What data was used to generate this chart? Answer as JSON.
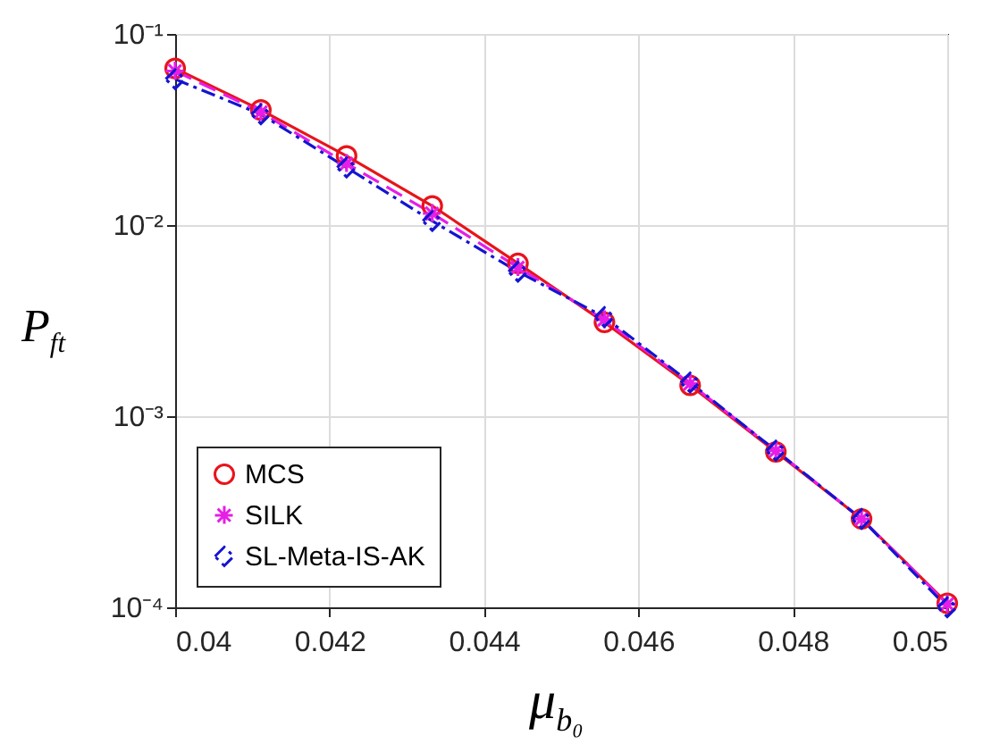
{
  "chart_data": {
    "type": "line",
    "xlabel": "μ$_{b₀}$",
    "ylabel": "P$_{ft}$",
    "x": [
      0.04,
      0.04111,
      0.04222,
      0.04333,
      0.04444,
      0.04556,
      0.04667,
      0.04778,
      0.04889,
      0.05
    ],
    "series": [
      {
        "name": "MCS",
        "color": "#e8141b",
        "marker": "circle",
        "line_style": "solid",
        "values": [
          0.066,
          0.04,
          0.023,
          0.0126,
          0.0063,
          0.0031,
          0.00145,
          0.00065,
          0.00029,
          0.000105
        ]
      },
      {
        "name": "SILK",
        "color": "#e61ee6",
        "marker": "cross",
        "line_style": "dashed",
        "values": [
          0.064,
          0.039,
          0.021,
          0.0115,
          0.006,
          0.0032,
          0.00148,
          0.00066,
          0.00029,
          0.000104
        ]
      },
      {
        "name": "SL-Meta-IS-AK",
        "color": "#1414d2",
        "marker": "diamond",
        "line_style": "dotted",
        "values": [
          0.058,
          0.038,
          0.02,
          0.0105,
          0.0057,
          0.0033,
          0.0015,
          0.00066,
          0.00029,
          0.0001
        ]
      }
    ],
    "log": "y",
    "xlim": [
      0.04,
      0.05
    ],
    "xticks": [
      0.04,
      0.042,
      0.044,
      0.046,
      0.048,
      0.05
    ],
    "ylim": [
      0.0001,
      0.1
    ],
    "yticks": [
      {
        "value": 0.0001,
        "label": "10⁻⁴"
      },
      {
        "value": 0.001,
        "label": "10⁻³"
      },
      {
        "value": 0.01,
        "label": "10⁻²"
      },
      {
        "value": 0.1,
        "label": "10⁻¹"
      }
    ],
    "grid": true,
    "legend": "bottom left"
  }
}
